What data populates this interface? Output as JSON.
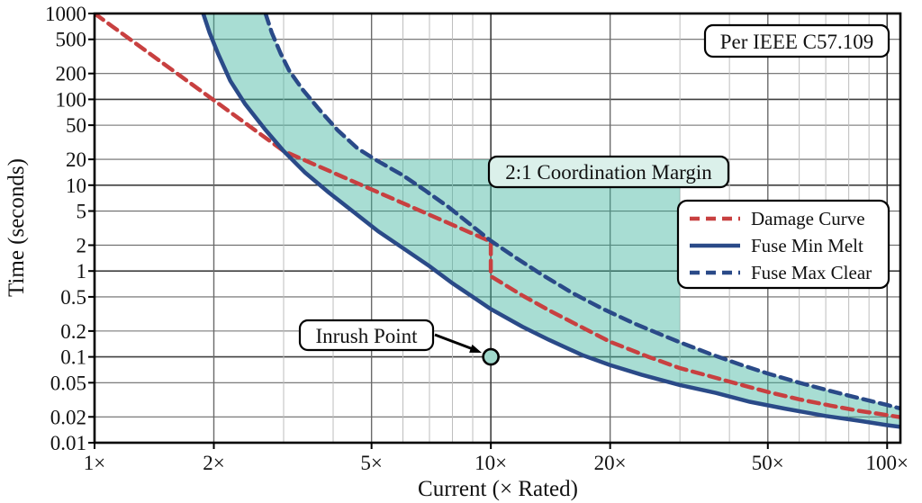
{
  "annotations": {
    "ieee_note": "Per IEEE C57.109",
    "margin_label": "2:1 Coordination Margin",
    "inrush_label": "Inrush Point"
  },
  "axis": {
    "x_label": "Current (× Rated)",
    "y_label": "Time (seconds)"
  },
  "colors": {
    "damage": "#c84040",
    "fuse": "#2a4a88",
    "band_fill": "rgba(62,180,158,0.45)",
    "margin_box_fill": "#dbf0ea",
    "marker_fill": "#9fd8cb",
    "grid_minor": "#bdbdbd",
    "grid_labeled": "#6a6a6a",
    "grid_decade": "#3f3f3f"
  },
  "chart_data": {
    "type": "line",
    "x_scale": "log",
    "y_scale": "log",
    "xlim": [
      1,
      108
    ],
    "ylim": [
      0.01,
      1000
    ],
    "grid": true,
    "legend_position": "center-right",
    "x_ticks": [
      {
        "v": 1,
        "label": "1×"
      },
      {
        "v": 2,
        "label": "2×"
      },
      {
        "v": 5,
        "label": "5×"
      },
      {
        "v": 10,
        "label": "10×"
      },
      {
        "v": 20,
        "label": "20×"
      },
      {
        "v": 50,
        "label": "50×"
      },
      {
        "v": 100,
        "label": "100×"
      }
    ],
    "x_minor_gridlines": [
      3,
      4,
      6,
      7,
      8,
      9,
      30,
      40,
      60,
      70,
      80,
      90
    ],
    "y_ticks": [
      {
        "v": 1000,
        "label": "1000"
      },
      {
        "v": 500,
        "label": "500"
      },
      {
        "v": 200,
        "label": "200"
      },
      {
        "v": 100,
        "label": "100"
      },
      {
        "v": 50,
        "label": "50"
      },
      {
        "v": 20,
        "label": "20"
      },
      {
        "v": 10,
        "label": "10"
      },
      {
        "v": 5,
        "label": "5"
      },
      {
        "v": 2,
        "label": "2"
      },
      {
        "v": 1,
        "label": "1"
      },
      {
        "v": 0.5,
        "label": "0.5"
      },
      {
        "v": 0.2,
        "label": "0.2"
      },
      {
        "v": 0.1,
        "label": "0.1"
      },
      {
        "v": 0.05,
        "label": "0.05"
      },
      {
        "v": 0.02,
        "label": "0.02"
      },
      {
        "v": 0.01,
        "label": "0.01"
      }
    ],
    "series": [
      {
        "name": "Damage Curve",
        "style": "dashed",
        "color": "#c84040",
        "points": [
          [
            1,
            1000
          ],
          [
            3,
            25
          ],
          [
            10,
            2.2
          ],
          [
            10,
            0.87
          ],
          [
            12,
            0.52
          ],
          [
            14,
            0.35
          ],
          [
            17,
            0.22
          ],
          [
            20,
            0.15
          ],
          [
            25,
            0.1
          ],
          [
            30,
            0.074
          ],
          [
            36,
            0.059
          ],
          [
            43,
            0.047
          ],
          [
            50,
            0.039
          ],
          [
            60,
            0.032
          ],
          [
            72,
            0.027
          ],
          [
            85,
            0.0235
          ],
          [
            100,
            0.021
          ],
          [
            108,
            0.0198
          ]
        ]
      },
      {
        "name": "Fuse Min Melt",
        "style": "solid",
        "color": "#2a4a88",
        "points": [
          [
            1.88,
            1000
          ],
          [
            1.95,
            600
          ],
          [
            2.05,
            340
          ],
          [
            2.2,
            165
          ],
          [
            2.4,
            88
          ],
          [
            2.7,
            44
          ],
          [
            3,
            25
          ],
          [
            3.4,
            14
          ],
          [
            3.9,
            8.2
          ],
          [
            4.5,
            4.9
          ],
          [
            5.2,
            2.9
          ],
          [
            6,
            1.85
          ],
          [
            7,
            1.14
          ],
          [
            8,
            0.72
          ],
          [
            9,
            0.5
          ],
          [
            10,
            0.36
          ],
          [
            12,
            0.225
          ],
          [
            14,
            0.158
          ],
          [
            17,
            0.105
          ],
          [
            20,
            0.08
          ],
          [
            24,
            0.062
          ],
          [
            30,
            0.047
          ],
          [
            37,
            0.038
          ],
          [
            45,
            0.03
          ],
          [
            55,
            0.025
          ],
          [
            70,
            0.0205
          ],
          [
            85,
            0.018
          ],
          [
            100,
            0.016
          ],
          [
            108,
            0.0153
          ]
        ]
      },
      {
        "name": "Fuse Max Clear",
        "style": "dashed",
        "color": "#2a4a88",
        "points": [
          [
            2.7,
            1000
          ],
          [
            2.8,
            600
          ],
          [
            2.95,
            340
          ],
          [
            3.1,
            215
          ],
          [
            3.35,
            130
          ],
          [
            3.7,
            75
          ],
          [
            4.1,
            44
          ],
          [
            4.6,
            27
          ],
          [
            5.1,
            20
          ],
          [
            6,
            13
          ],
          [
            6.8,
            8.8
          ],
          [
            7.8,
            5.6
          ],
          [
            8.8,
            3.6
          ],
          [
            10,
            2.25
          ],
          [
            11.5,
            1.45
          ],
          [
            13.5,
            0.9
          ],
          [
            16,
            0.56
          ],
          [
            19,
            0.37
          ],
          [
            23,
            0.245
          ],
          [
            27,
            0.18
          ],
          [
            30,
            0.148
          ],
          [
            36,
            0.107
          ],
          [
            43,
            0.08
          ],
          [
            50,
            0.064
          ],
          [
            60,
            0.05
          ],
          [
            72,
            0.04
          ],
          [
            85,
            0.033
          ],
          [
            100,
            0.0275
          ],
          [
            108,
            0.025
          ]
        ]
      }
    ],
    "shaded_band": {
      "between": [
        "Fuse Min Melt",
        "Fuse Max Clear"
      ],
      "color": "rgba(62,180,158,0.45)"
    },
    "margin_region": {
      "t_top": 20,
      "c_left": 5.32,
      "c_right": 30,
      "bounded_below_by": "Fuse Max Clear"
    },
    "inrush_point": {
      "c": 10,
      "t": 0.1
    }
  }
}
